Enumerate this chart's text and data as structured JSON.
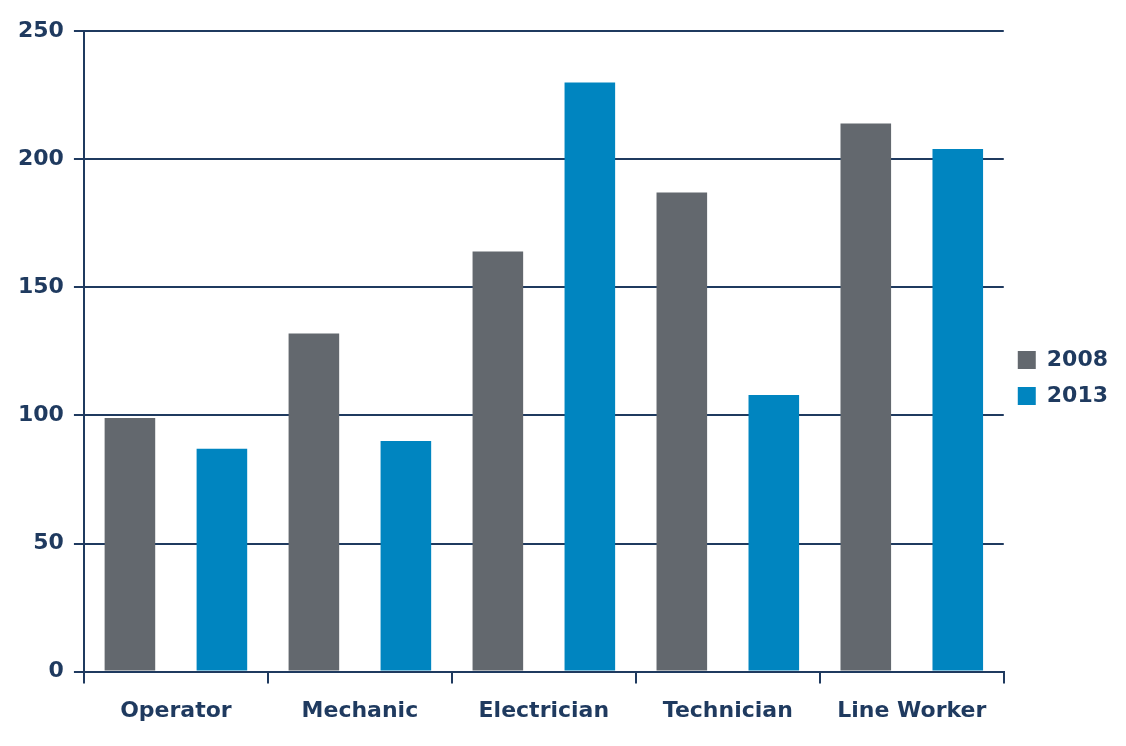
{
  "chart_data": {
    "type": "bar",
    "categories": [
      "Operator",
      "Mechanic",
      "Electrician",
      "Technician",
      "Line Worker"
    ],
    "series": [
      {
        "name": "2008",
        "color": "#63686e",
        "values": [
          99,
          132,
          164,
          187,
          214
        ]
      },
      {
        "name": "2013",
        "color": "#0085c0",
        "values": [
          87,
          90,
          230,
          108,
          204
        ]
      }
    ],
    "ylim": [
      0,
      250
    ],
    "yticks": [
      0,
      50,
      100,
      150,
      200,
      250
    ],
    "grid": "y",
    "legend": "right"
  }
}
